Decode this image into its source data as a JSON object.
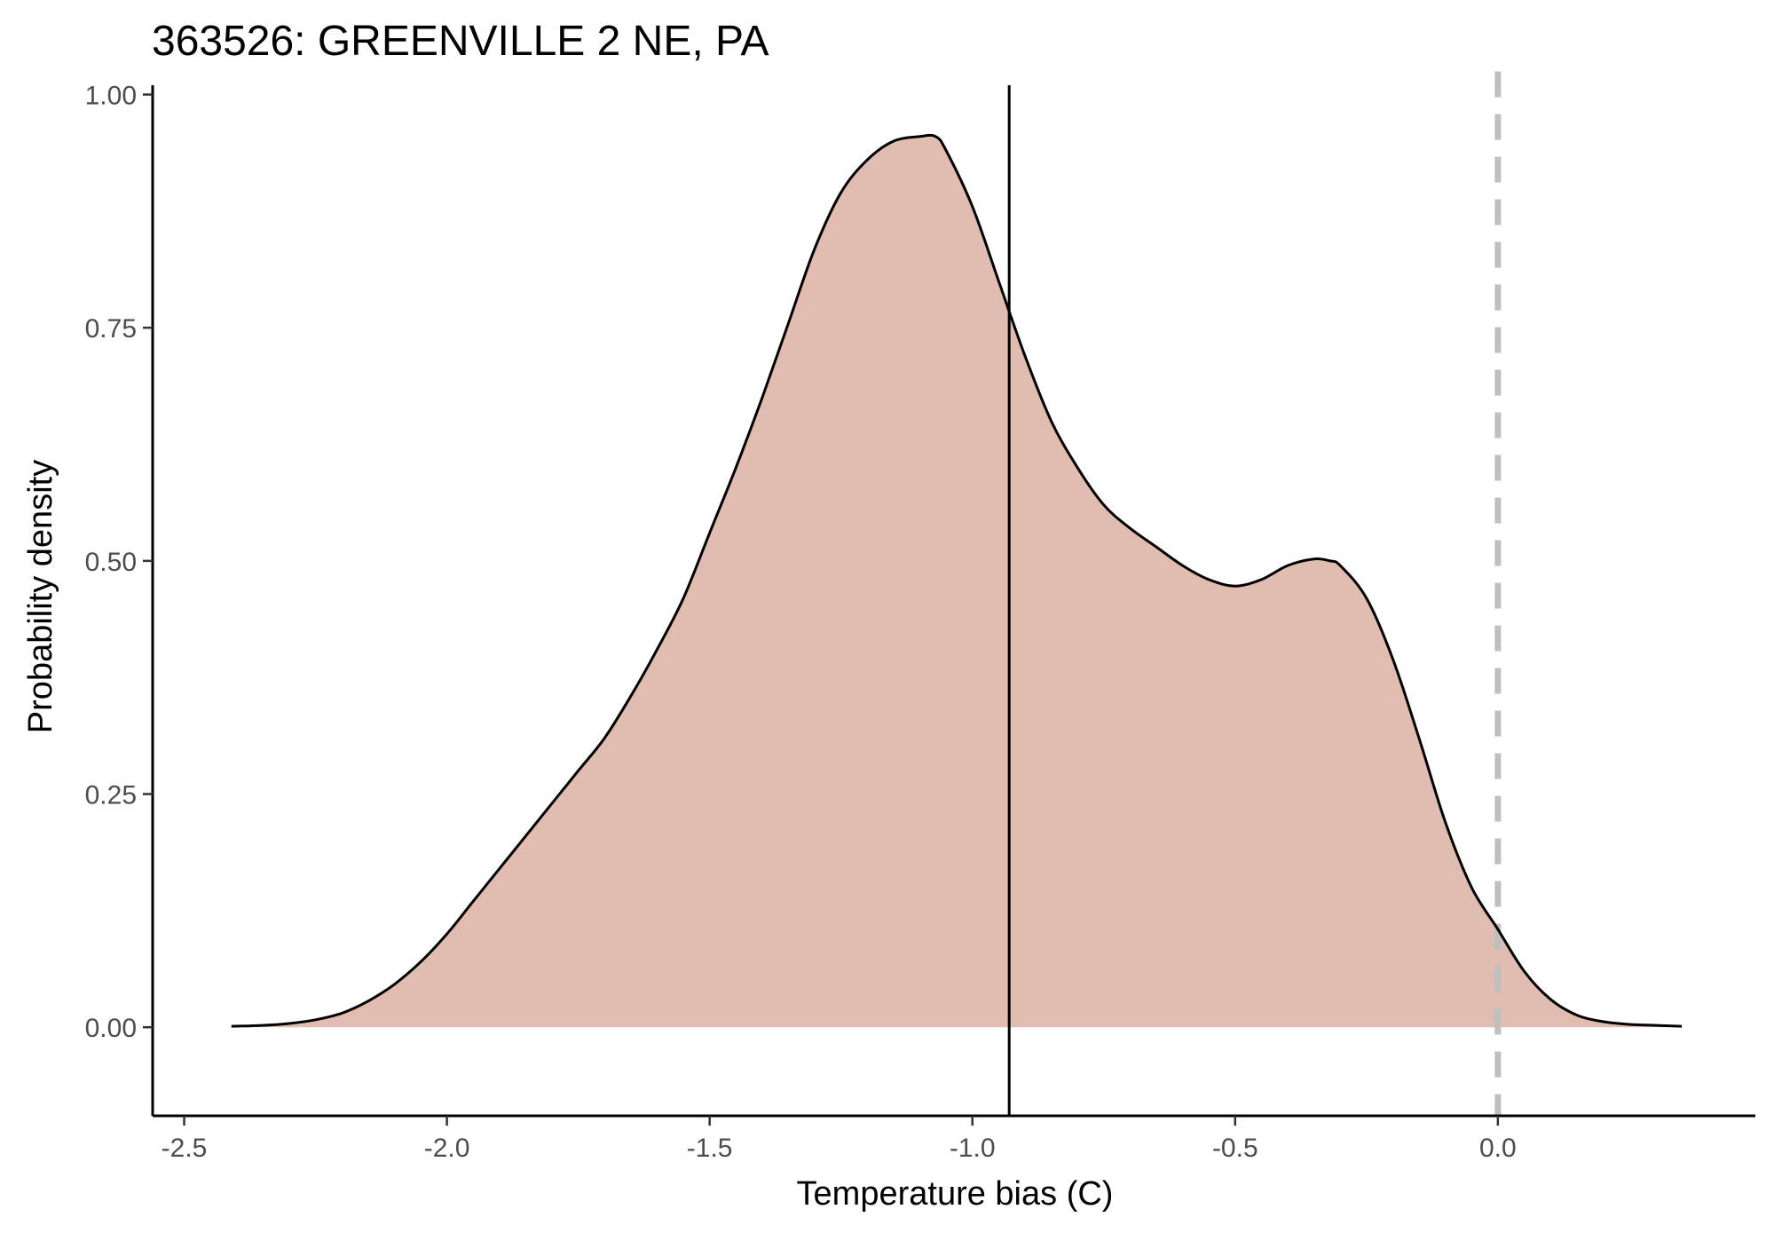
{
  "chart_data": {
    "type": "area",
    "title": "363526: GREENVILLE 2 NE, PA",
    "xlabel": "Temperature bias (C)",
    "ylabel": "Probability density",
    "xlim": [
      -2.56,
      0.49
    ],
    "ylim": [
      -0.095,
      1.01
    ],
    "x_ticks": [
      -2.5,
      -2.0,
      -1.5,
      -1.0,
      -0.5,
      0.0
    ],
    "x_tick_labels": [
      "-2.5",
      "-2.0",
      "-1.5",
      "-1.0",
      "-0.5",
      "0.0"
    ],
    "y_ticks": [
      0.0,
      0.25,
      0.5,
      0.75,
      1.0
    ],
    "y_tick_labels": [
      "0.00",
      "0.25",
      "0.50",
      "0.75",
      "1.00"
    ],
    "grid": false,
    "fill_color": "#e1bcb0",
    "line_color": "#000000",
    "x": [
      -2.41,
      -2.35,
      -2.3,
      -2.25,
      -2.2,
      -2.15,
      -2.1,
      -2.05,
      -2.0,
      -1.95,
      -1.9,
      -1.85,
      -1.8,
      -1.75,
      -1.7,
      -1.65,
      -1.6,
      -1.55,
      -1.5,
      -1.45,
      -1.4,
      -1.35,
      -1.3,
      -1.25,
      -1.2,
      -1.15,
      -1.1,
      -1.07,
      -1.05,
      -1.0,
      -0.95,
      -0.9,
      -0.85,
      -0.8,
      -0.75,
      -0.7,
      -0.65,
      -0.6,
      -0.55,
      -0.5,
      -0.45,
      -0.4,
      -0.35,
      -0.32,
      -0.3,
      -0.25,
      -0.2,
      -0.15,
      -0.1,
      -0.05,
      0.0,
      0.05,
      0.1,
      0.15,
      0.2,
      0.25,
      0.3,
      0.35
    ],
    "y": [
      0.001,
      0.002,
      0.004,
      0.008,
      0.015,
      0.028,
      0.046,
      0.07,
      0.1,
      0.135,
      0.17,
      0.205,
      0.24,
      0.275,
      0.31,
      0.355,
      0.405,
      0.46,
      0.53,
      0.6,
      0.675,
      0.755,
      0.835,
      0.895,
      0.93,
      0.95,
      0.955,
      0.955,
      0.94,
      0.88,
      0.8,
      0.72,
      0.65,
      0.6,
      0.56,
      0.535,
      0.515,
      0.495,
      0.48,
      0.473,
      0.48,
      0.495,
      0.502,
      0.5,
      0.495,
      0.46,
      0.395,
      0.31,
      0.22,
      0.15,
      0.105,
      0.06,
      0.03,
      0.013,
      0.006,
      0.003,
      0.002,
      0.001
    ],
    "reference_lines": [
      {
        "x": -0.93,
        "style": "solid",
        "color": "#000000"
      },
      {
        "x": 0.0,
        "style": "dashed",
        "color": "#bfbfbf"
      }
    ]
  }
}
